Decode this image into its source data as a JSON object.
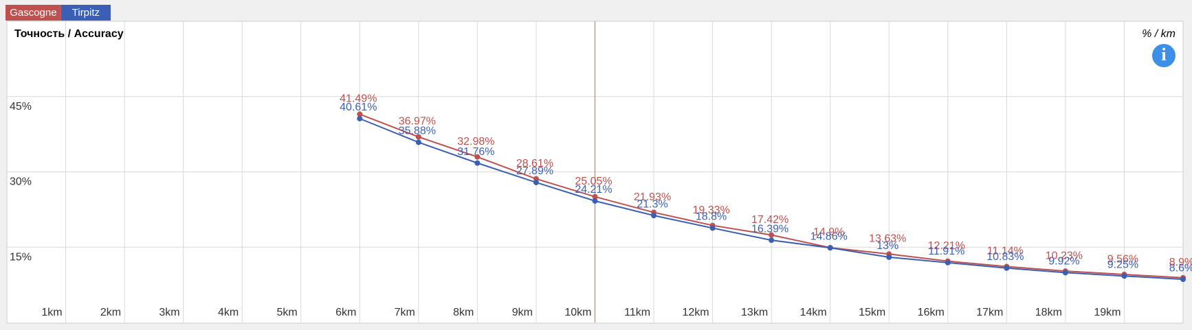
{
  "chart_data": {
    "type": "line",
    "title": "Точность / Accuracy",
    "unit_label": "% / km",
    "info_icon": "i",
    "x": [
      6,
      7,
      8,
      9,
      10,
      11,
      12,
      13,
      14,
      15,
      16,
      17,
      18,
      19,
      20
    ],
    "series": [
      {
        "name": "Gascogne",
        "color": "#c0504d",
        "values": [
          41.49,
          36.97,
          32.98,
          28.61,
          25.05,
          21.93,
          19.33,
          17.42,
          14.9,
          13.63,
          12.21,
          11.14,
          10.23,
          9.56,
          8.9
        ],
        "value_labels": [
          "41.49%",
          "36.97%",
          "32.98%",
          "28.61%",
          "25.05%",
          "21.93%",
          "19.33%",
          "17.42%",
          "14.9%",
          "13.63%",
          "12.21%",
          "11.14%",
          "10.23%",
          "9.56%",
          "8.9%"
        ]
      },
      {
        "name": "Tirpitz",
        "color": "#3a5fb5",
        "values": [
          40.61,
          35.88,
          31.76,
          27.89,
          24.21,
          21.3,
          18.8,
          16.39,
          14.86,
          13,
          11.91,
          10.83,
          9.92,
          9.25,
          8.6
        ],
        "value_labels": [
          "40.61%",
          "35.88%",
          "31.76%",
          "27.89%",
          "24.21%",
          "21.3%",
          "18.8%",
          "16.39%",
          "14.86%",
          "13%",
          "11.91%",
          "10.83%",
          "9.92%",
          "9.25%",
          "8.6%"
        ]
      }
    ],
    "xlim": [
      0,
      20
    ],
    "xticks": [
      {
        "value": 1,
        "label": "1km"
      },
      {
        "value": 2,
        "label": "2km"
      },
      {
        "value": 3,
        "label": "3km"
      },
      {
        "value": 4,
        "label": "4km"
      },
      {
        "value": 5,
        "label": "5km"
      },
      {
        "value": 6,
        "label": "6km"
      },
      {
        "value": 7,
        "label": "7km"
      },
      {
        "value": 8,
        "label": "8km"
      },
      {
        "value": 9,
        "label": "9km"
      },
      {
        "value": 10,
        "label": "10km"
      },
      {
        "value": 11,
        "label": "11km"
      },
      {
        "value": 12,
        "label": "12km"
      },
      {
        "value": 13,
        "label": "13km"
      },
      {
        "value": 14,
        "label": "14km"
      },
      {
        "value": 15,
        "label": "15km"
      },
      {
        "value": 16,
        "label": "16km"
      },
      {
        "value": 17,
        "label": "17km"
      },
      {
        "value": 18,
        "label": "18km"
      },
      {
        "value": 19,
        "label": "19km"
      }
    ],
    "ylim": [
      0,
      60
    ],
    "yticks": [
      {
        "value": 15,
        "label": "15%"
      },
      {
        "value": 30,
        "label": "30%"
      },
      {
        "value": 45,
        "label": "45%"
      }
    ],
    "highlight_x": 10,
    "highlight_color": "#e07b39",
    "grid": true
  }
}
